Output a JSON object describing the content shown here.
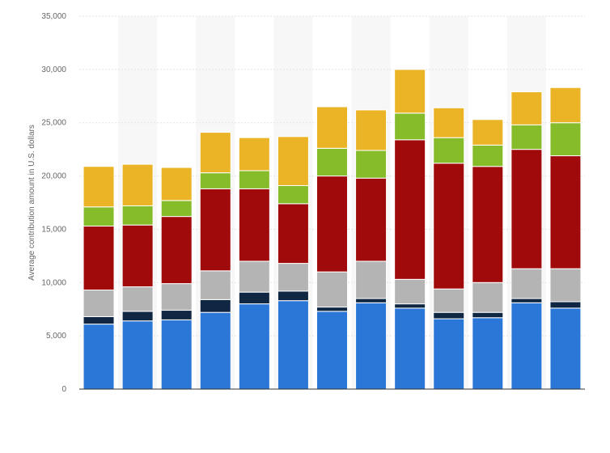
{
  "chart_data": {
    "type": "bar",
    "stacked": true,
    "ylabel": "Average contribution amount in U.S. dollars",
    "xlabel": "",
    "ylim": [
      0,
      35000
    ],
    "yticks": [
      0,
      5000,
      10000,
      15000,
      20000,
      25000,
      30000,
      35000
    ],
    "ytick_labels": [
      "0",
      "5,000",
      "10,000",
      "15,000",
      "20,000",
      "25,000",
      "30,000",
      "35,000"
    ],
    "categories": [
      "",
      "",
      "",
      "",
      "",
      "",
      "",
      "",
      "",
      "",
      "",
      "",
      ""
    ],
    "grid": true,
    "alternating_column_bands": true,
    "series": [
      {
        "color": "#2a77d8",
        "values": [
          6100,
          6400,
          6500,
          7200,
          8000,
          8300,
          7300,
          8100,
          7600,
          6600,
          6700,
          8100,
          7600
        ]
      },
      {
        "color": "#0f2742",
        "values": [
          700,
          900,
          900,
          1200,
          1100,
          900,
          400,
          400,
          400,
          600,
          500,
          400,
          600
        ]
      },
      {
        "color": "#b4b4b4",
        "values": [
          2500,
          2300,
          2500,
          2700,
          2900,
          2600,
          3300,
          3500,
          2300,
          2200,
          2800,
          2800,
          3100
        ]
      },
      {
        "color": "#a00a0a",
        "values": [
          6000,
          5800,
          6300,
          7700,
          6800,
          5600,
          9000,
          7800,
          13100,
          11800,
          10900,
          11200,
          10600
        ]
      },
      {
        "color": "#86bb2a",
        "values": [
          1800,
          1800,
          1500,
          1500,
          1700,
          1700,
          2600,
          2600,
          2500,
          2400,
          2000,
          2300,
          3100
        ]
      },
      {
        "color": "#ebb426",
        "values": [
          3800,
          3900,
          3100,
          3800,
          3100,
          4600,
          3900,
          3800,
          4100,
          2800,
          2400,
          3100,
          3300
        ]
      }
    ]
  }
}
